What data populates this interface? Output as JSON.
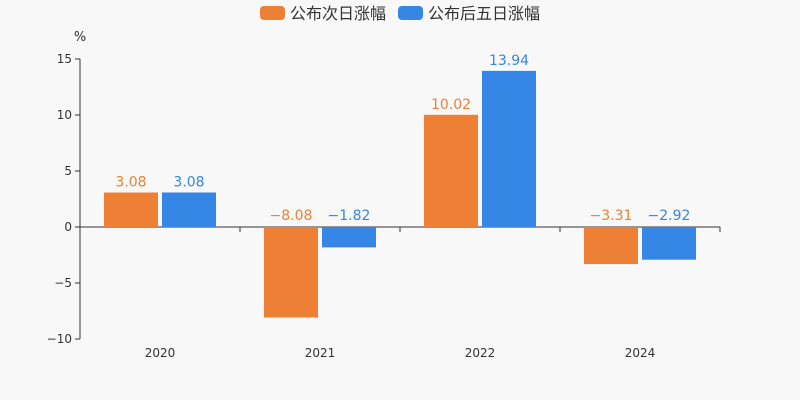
{
  "chart_data": {
    "type": "bar",
    "categories": [
      "2020",
      "2021",
      "2022",
      "2024"
    ],
    "series": [
      {
        "name": "公布次日涨幅",
        "color": "#ee8035",
        "values": [
          3.08,
          -8.08,
          10.02,
          -3.31
        ]
      },
      {
        "name": "公布后五日涨幅",
        "color": "#3586e5",
        "values": [
          3.08,
          -1.82,
          13.94,
          -2.92
        ]
      }
    ],
    "yunit": "%",
    "ylim": [
      -10,
      15
    ],
    "yticks": [
      -10,
      -5,
      0,
      5,
      10,
      15
    ],
    "ytick_labels": [
      "−10",
      "−5",
      "0",
      "5",
      "10",
      "15"
    ],
    "legend_position": "top-center",
    "grid": false
  }
}
